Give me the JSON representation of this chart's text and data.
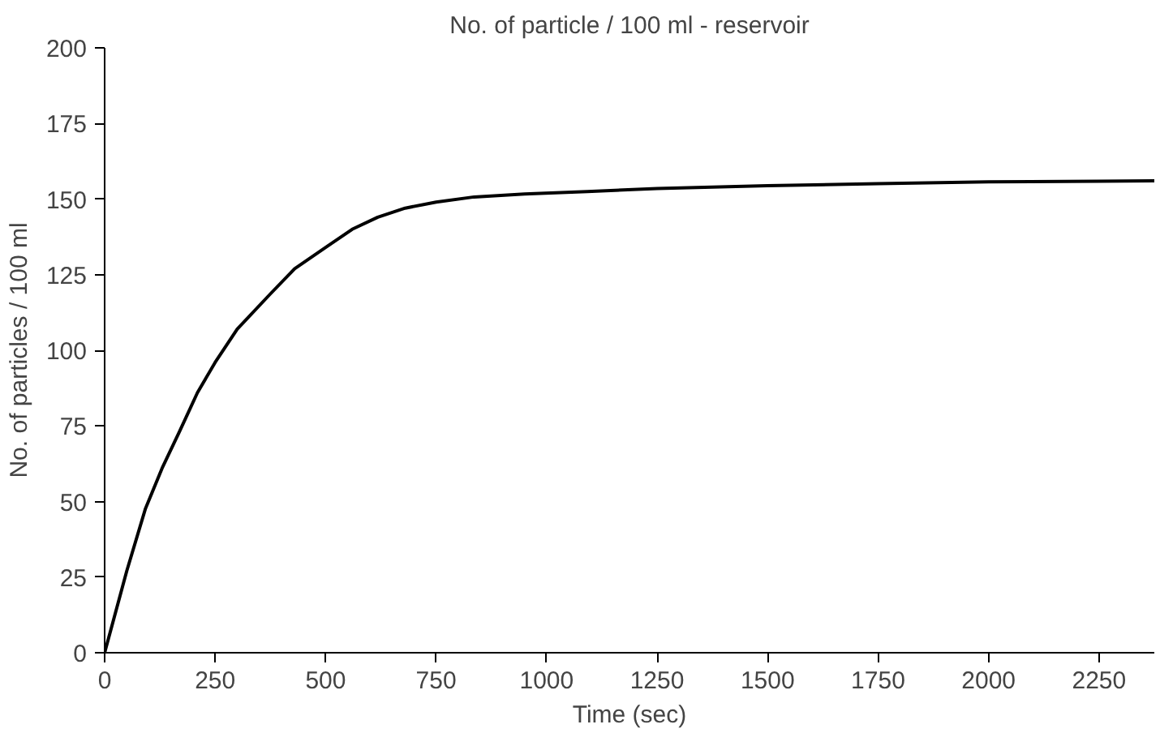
{
  "chart_data": {
    "type": "line",
    "title": "No. of particle / 100 ml - reservoir",
    "xlabel": "Time (sec)",
    "ylabel": "No. of particles / 100 ml",
    "x": [
      0,
      50,
      92,
      130,
      169,
      210,
      250,
      300,
      374,
      430,
      500,
      560,
      618,
      680,
      750,
      836,
      950,
      1092,
      1250,
      1500,
      1750,
      2000,
      2250,
      2375
    ],
    "series": [
      {
        "color": "#000000",
        "values": [
          0,
          27,
          47.5,
          61,
          73,
          86,
          96,
          107,
          118.5,
          127,
          134,
          140,
          144,
          147,
          149,
          150.7,
          151.7,
          152.5,
          153.5,
          154.4,
          155.1,
          155.7,
          155.9,
          156
        ]
      }
    ],
    "xlim": [
      0,
      2375
    ],
    "ylim": [
      0,
      200
    ],
    "xticks": [
      0,
      250,
      500,
      750,
      1000,
      1250,
      1500,
      1750,
      2000,
      2250
    ],
    "yticks": [
      0,
      25,
      50,
      75,
      100,
      125,
      150,
      175,
      200
    ],
    "grid": false,
    "marker": "none",
    "line_style": "solid"
  }
}
